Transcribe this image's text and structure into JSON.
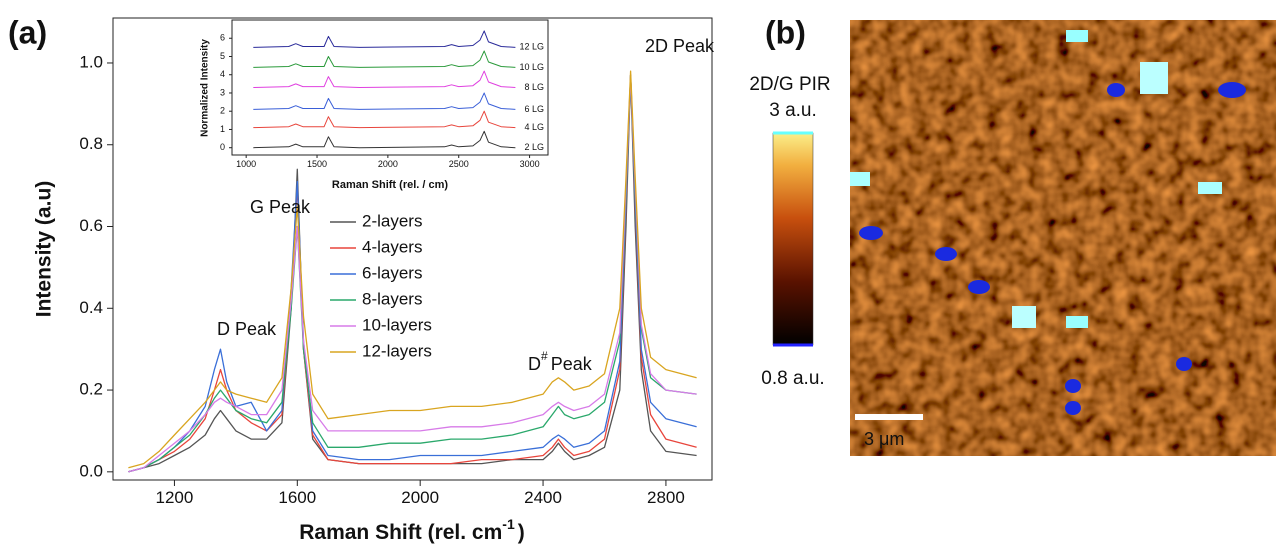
{
  "chart_data": [
    {
      "type": "line",
      "panel": "(a)",
      "xlabel": {
        "base": "Raman Shift (rel. cm",
        "sup": "-1",
        "tail": ")"
      },
      "ylabel": "Intensity (a.u)",
      "annotations": [
        "D Peak",
        "G Peak",
        {
          "base": "D",
          "sup": "#",
          "tail": "Peak"
        },
        "2D Peak"
      ],
      "xlim": [
        1000,
        2950
      ],
      "ylim": [
        -0.02,
        1.11
      ],
      "xticks": [
        1200,
        1600,
        2000,
        2400,
        2800
      ],
      "yticks": [
        {
          "value": 0,
          "label": "0.0"
        },
        0.2,
        0.4,
        0.6,
        0.8,
        {
          "value": 1,
          "label": "1.0"
        }
      ],
      "legend": "center",
      "x": [
        1050,
        1100,
        1150,
        1200,
        1250,
        1300,
        1330,
        1350,
        1370,
        1400,
        1450,
        1500,
        1550,
        1580,
        1600,
        1620,
        1650,
        1700,
        1800,
        1900,
        2000,
        2100,
        2200,
        2300,
        2400,
        2430,
        2450,
        2470,
        2500,
        2550,
        2600,
        2650,
        2670,
        2685,
        2700,
        2720,
        2750,
        2800,
        2900
      ],
      "series": [
        {
          "name": "2-layers",
          "color": "#555555",
          "values": [
            0,
            0.01,
            0.02,
            0.04,
            0.06,
            0.09,
            0.13,
            0.15,
            0.13,
            0.1,
            0.08,
            0.08,
            0.12,
            0.4,
            0.74,
            0.3,
            0.08,
            0.03,
            0.02,
            0.02,
            0.02,
            0.02,
            0.02,
            0.03,
            0.03,
            0.05,
            0.07,
            0.05,
            0.03,
            0.04,
            0.06,
            0.2,
            0.6,
            0.97,
            0.6,
            0.25,
            0.1,
            0.05,
            0.04
          ]
        },
        {
          "name": "4-layers",
          "color": "#e8453c",
          "values": [
            0,
            0.01,
            0.03,
            0.05,
            0.08,
            0.13,
            0.2,
            0.25,
            0.2,
            0.15,
            0.12,
            0.1,
            0.14,
            0.42,
            0.7,
            0.3,
            0.09,
            0.03,
            0.02,
            0.02,
            0.02,
            0.02,
            0.03,
            0.03,
            0.04,
            0.06,
            0.08,
            0.06,
            0.04,
            0.05,
            0.08,
            0.25,
            0.65,
            0.97,
            0.65,
            0.28,
            0.14,
            0.08,
            0.06
          ]
        },
        {
          "name": "6-layers",
          "color": "#3a6fd8",
          "values": [
            0,
            0.01,
            0.03,
            0.06,
            0.1,
            0.16,
            0.25,
            0.3,
            0.22,
            0.16,
            0.17,
            0.1,
            0.15,
            0.45,
            0.71,
            0.32,
            0.1,
            0.04,
            0.03,
            0.03,
            0.04,
            0.04,
            0.04,
            0.05,
            0.06,
            0.08,
            0.09,
            0.08,
            0.06,
            0.07,
            0.1,
            0.27,
            0.66,
            0.97,
            0.66,
            0.3,
            0.17,
            0.13,
            0.11
          ]
        },
        {
          "name": "8-layers",
          "color": "#2aa86b",
          "values": [
            0,
            0.01,
            0.03,
            0.06,
            0.09,
            0.14,
            0.18,
            0.2,
            0.18,
            0.15,
            0.13,
            0.12,
            0.17,
            0.4,
            0.6,
            0.3,
            0.12,
            0.06,
            0.06,
            0.07,
            0.07,
            0.08,
            0.08,
            0.09,
            0.11,
            0.14,
            0.16,
            0.14,
            0.13,
            0.14,
            0.17,
            0.32,
            0.68,
            0.97,
            0.68,
            0.35,
            0.23,
            0.2,
            0.19
          ]
        },
        {
          "name": "10-layers",
          "color": "#d77be8",
          "values": [
            0,
            0.01,
            0.04,
            0.07,
            0.1,
            0.14,
            0.17,
            0.18,
            0.17,
            0.16,
            0.14,
            0.14,
            0.2,
            0.42,
            0.6,
            0.32,
            0.15,
            0.1,
            0.1,
            0.1,
            0.1,
            0.11,
            0.11,
            0.12,
            0.14,
            0.16,
            0.17,
            0.16,
            0.15,
            0.16,
            0.19,
            0.34,
            0.7,
            0.97,
            0.7,
            0.36,
            0.24,
            0.2,
            0.19
          ]
        },
        {
          "name": "12-layers",
          "color": "#d9a520",
          "values": [
            0.01,
            0.02,
            0.05,
            0.09,
            0.13,
            0.17,
            0.2,
            0.22,
            0.2,
            0.19,
            0.18,
            0.17,
            0.23,
            0.45,
            0.65,
            0.38,
            0.19,
            0.13,
            0.14,
            0.15,
            0.15,
            0.16,
            0.16,
            0.17,
            0.19,
            0.22,
            0.23,
            0.22,
            0.2,
            0.21,
            0.24,
            0.4,
            0.72,
            0.98,
            0.72,
            0.4,
            0.28,
            0.25,
            0.23
          ]
        }
      ]
    },
    {
      "type": "line",
      "xlabel": "Raman Shift (rel. / cm)",
      "ylabel": "Normalized Intensity",
      "xlim": [
        900,
        3130
      ],
      "ylim": [
        -0.4,
        7
      ],
      "xticks": [
        1000,
        1500,
        2000,
        2500,
        3000
      ],
      "yticks": [
        0,
        1,
        2,
        3,
        4,
        5,
        6
      ],
      "x": [
        1050,
        1300,
        1350,
        1400,
        1550,
        1580,
        1620,
        1800,
        2400,
        2450,
        2500,
        2600,
        2650,
        2680,
        2710,
        2800,
        2900
      ],
      "series": [
        {
          "name": "2 LG",
          "color": "#333333",
          "values": [
            0,
            0.05,
            0.2,
            0.05,
            0.05,
            0.6,
            0.05,
            0,
            0.05,
            0.15,
            0.05,
            0.1,
            0.4,
            0.9,
            0.3,
            0.05,
            0
          ]
        },
        {
          "name": "4 LG",
          "color": "#e8453c",
          "values": [
            1.1,
            1.15,
            1.3,
            1.15,
            1.15,
            1.7,
            1.15,
            1.1,
            1.15,
            1.25,
            1.15,
            1.2,
            1.5,
            2,
            1.4,
            1.15,
            1.1
          ]
        },
        {
          "name": "6 LG",
          "color": "#3a5fd8",
          "values": [
            2.1,
            2.15,
            2.3,
            2.15,
            2.15,
            2.7,
            2.15,
            2.1,
            2.15,
            2.25,
            2.15,
            2.2,
            2.5,
            3,
            2.4,
            2.15,
            2.1
          ]
        },
        {
          "name": "8 LG",
          "color": "#e040e0",
          "values": [
            3.3,
            3.35,
            3.5,
            3.35,
            3.35,
            3.9,
            3.35,
            3.3,
            3.35,
            3.45,
            3.35,
            3.4,
            3.7,
            4.2,
            3.6,
            3.35,
            3.3
          ]
        },
        {
          "name": "10 LG",
          "color": "#2a9a3a",
          "values": [
            4.4,
            4.45,
            4.6,
            4.45,
            4.45,
            5,
            4.45,
            4.4,
            4.45,
            4.55,
            4.45,
            4.5,
            4.8,
            5.3,
            4.7,
            4.45,
            4.4
          ]
        },
        {
          "name": "12 LG",
          "color": "#2a2a9a",
          "values": [
            5.5,
            5.55,
            5.7,
            5.55,
            5.55,
            6.1,
            5.55,
            5.5,
            5.55,
            5.65,
            5.55,
            5.6,
            5.9,
            6.4,
            5.8,
            5.55,
            5.5
          ]
        }
      ]
    },
    {
      "type": "image",
      "panel": "(b)",
      "colorbar_label": "2D/G PIR",
      "clim": [
        0.8,
        3
      ],
      "cticks": [
        {
          "value": 3,
          "label": "3 a.u."
        },
        {
          "value": 0.8,
          "label": "0.8 a.u."
        }
      ],
      "scalebar": "3 μm"
    }
  ]
}
